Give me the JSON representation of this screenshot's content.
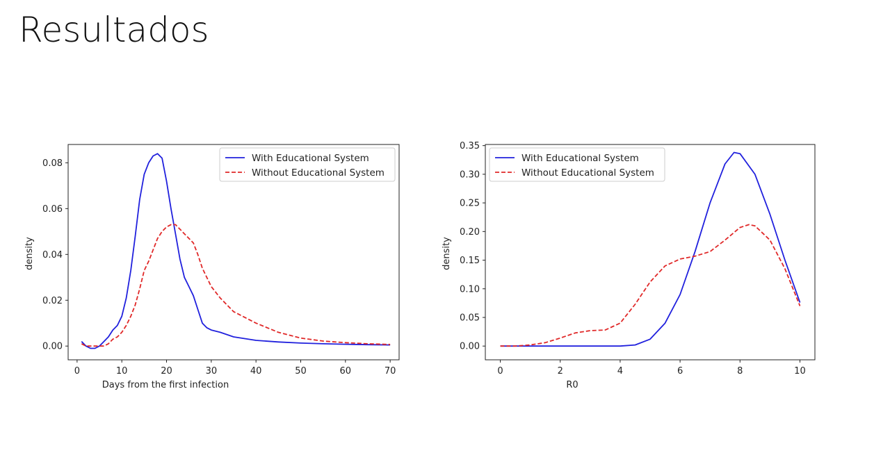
{
  "slide": {
    "title": "Resultados"
  },
  "colors": {
    "with": "#2020dd",
    "without": "#e02828"
  },
  "chart_data": [
    {
      "type": "line",
      "xlabel": "Days from the first infection",
      "ylabel": "density",
      "xlim": [
        -2,
        72
      ],
      "ylim": [
        -0.006,
        0.088
      ],
      "xticks": [
        0,
        10,
        20,
        30,
        40,
        50,
        60,
        70
      ],
      "yticks": [
        0.0,
        0.02,
        0.04,
        0.06,
        0.08
      ],
      "ytick_labels": [
        "0.00",
        "0.02",
        "0.04",
        "0.06",
        "0.08"
      ],
      "legend_position": "top-right",
      "series": [
        {
          "name": "With Educational System",
          "style": "solid",
          "x": [
            1,
            2,
            3,
            4,
            5,
            6,
            7,
            8,
            9,
            10,
            11,
            12,
            13,
            14,
            15,
            16,
            17,
            18,
            19,
            20,
            21,
            22,
            23,
            24,
            25,
            26,
            27,
            28,
            29,
            30,
            32,
            35,
            40,
            45,
            50,
            55,
            60,
            65,
            70
          ],
          "y": [
            0.002,
            0.0,
            -0.001,
            -0.001,
            0.0,
            0.002,
            0.004,
            0.007,
            0.009,
            0.013,
            0.021,
            0.033,
            0.048,
            0.064,
            0.075,
            0.08,
            0.083,
            0.084,
            0.082,
            0.072,
            0.06,
            0.049,
            0.038,
            0.03,
            0.026,
            0.022,
            0.016,
            0.01,
            0.008,
            0.007,
            0.006,
            0.004,
            0.0025,
            0.0018,
            0.0013,
            0.001,
            0.0008,
            0.0006,
            0.0005
          ]
        },
        {
          "name": "Without Educational System",
          "style": "dashed",
          "x": [
            1,
            2,
            3,
            4,
            5,
            6,
            7,
            8,
            9,
            10,
            11,
            12,
            13,
            14,
            15,
            16,
            17,
            18,
            19,
            20,
            21,
            22,
            23,
            24,
            25,
            26,
            27,
            28,
            29,
            30,
            32,
            35,
            40,
            45,
            50,
            55,
            60,
            65,
            70
          ],
          "y": [
            0.001,
            0.0,
            0.0,
            0.0,
            0.0,
            0.0,
            0.001,
            0.003,
            0.004,
            0.006,
            0.009,
            0.013,
            0.018,
            0.025,
            0.033,
            0.037,
            0.042,
            0.047,
            0.05,
            0.052,
            0.053,
            0.053,
            0.051,
            0.049,
            0.047,
            0.045,
            0.04,
            0.034,
            0.03,
            0.026,
            0.021,
            0.015,
            0.01,
            0.006,
            0.0035,
            0.0022,
            0.0015,
            0.001,
            0.0007
          ]
        }
      ]
    },
    {
      "type": "line",
      "xlabel": "R0",
      "ylabel": "density",
      "xlim": [
        -0.5,
        10.5
      ],
      "ylim": [
        -0.024,
        0.352
      ],
      "xticks": [
        0,
        2,
        4,
        6,
        8,
        10
      ],
      "yticks": [
        0.0,
        0.05,
        0.1,
        0.15,
        0.2,
        0.25,
        0.3,
        0.35
      ],
      "ytick_labels": [
        "0.00",
        "0.05",
        "0.10",
        "0.15",
        "0.20",
        "0.25",
        "0.30",
        "0.35"
      ],
      "legend_position": "top-left",
      "series": [
        {
          "name": "With Educational System",
          "style": "solid",
          "x": [
            0,
            1,
            2,
            3,
            4,
            4.5,
            5,
            5.5,
            6,
            6.5,
            7,
            7.5,
            7.8,
            8,
            8.5,
            9,
            9.5,
            10
          ],
          "y": [
            0.0,
            0.0,
            0.0,
            0.0,
            0.0,
            0.002,
            0.012,
            0.04,
            0.09,
            0.165,
            0.25,
            0.318,
            0.338,
            0.336,
            0.3,
            0.23,
            0.15,
            0.076
          ]
        },
        {
          "name": "Without Educational System",
          "style": "dashed",
          "x": [
            0,
            0.5,
            1,
            1.5,
            2,
            2.5,
            3,
            3.5,
            4,
            4.5,
            5,
            5.5,
            6,
            6.5,
            7,
            7.5,
            8,
            8.3,
            8.5,
            9,
            9.5,
            10
          ],
          "y": [
            0.0,
            0.0,
            0.002,
            0.006,
            0.014,
            0.023,
            0.027,
            0.028,
            0.04,
            0.073,
            0.112,
            0.14,
            0.152,
            0.157,
            0.165,
            0.185,
            0.207,
            0.212,
            0.21,
            0.185,
            0.135,
            0.07
          ]
        }
      ]
    }
  ]
}
